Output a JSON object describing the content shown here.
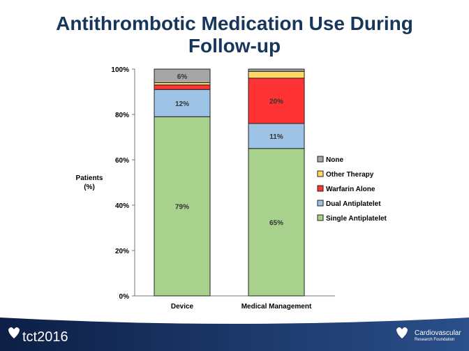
{
  "slide": {
    "title_line1": "Antithrombotic Medication Use During",
    "title_line2": "Follow-up"
  },
  "footer": {
    "left_logo": "tct2016",
    "right_logo_line1": "Cardiovascular",
    "right_logo_line2": "Research Foundation"
  },
  "chart_data": {
    "type": "bar",
    "stacked": true,
    "title": "Antithrombotic Medication Use During Follow-up",
    "ylabel": "Patients (%)",
    "ylabel_lines": [
      "Patients",
      "(%)"
    ],
    "xlabel": "",
    "ylim": [
      0,
      100
    ],
    "yticks": [
      0,
      20,
      40,
      60,
      80,
      100
    ],
    "ytick_labels": [
      "0%",
      "20%",
      "40%",
      "60%",
      "80%",
      "100%"
    ],
    "categories": [
      "Device",
      "Medical Management"
    ],
    "legend_position": "right",
    "series": [
      {
        "name": "Single Antiplatelet",
        "color": "#a9d18e",
        "values": [
          79,
          65
        ],
        "labels": [
          "79%",
          "65%"
        ]
      },
      {
        "name": "Dual Antiplatelet",
        "color": "#9dc3e6",
        "values": [
          12,
          11
        ],
        "labels": [
          "12%",
          "11%"
        ]
      },
      {
        "name": "Warfarin Alone",
        "color": "#ff3333",
        "values": [
          2,
          20
        ],
        "labels": [
          "",
          "20%"
        ]
      },
      {
        "name": "Other Therapy",
        "color": "#ffd966",
        "values": [
          1,
          3
        ],
        "labels": [
          "",
          ""
        ]
      },
      {
        "name": "None",
        "color": "#a6a6a6",
        "values": [
          6,
          1
        ],
        "labels": [
          "6%",
          ""
        ]
      }
    ]
  }
}
